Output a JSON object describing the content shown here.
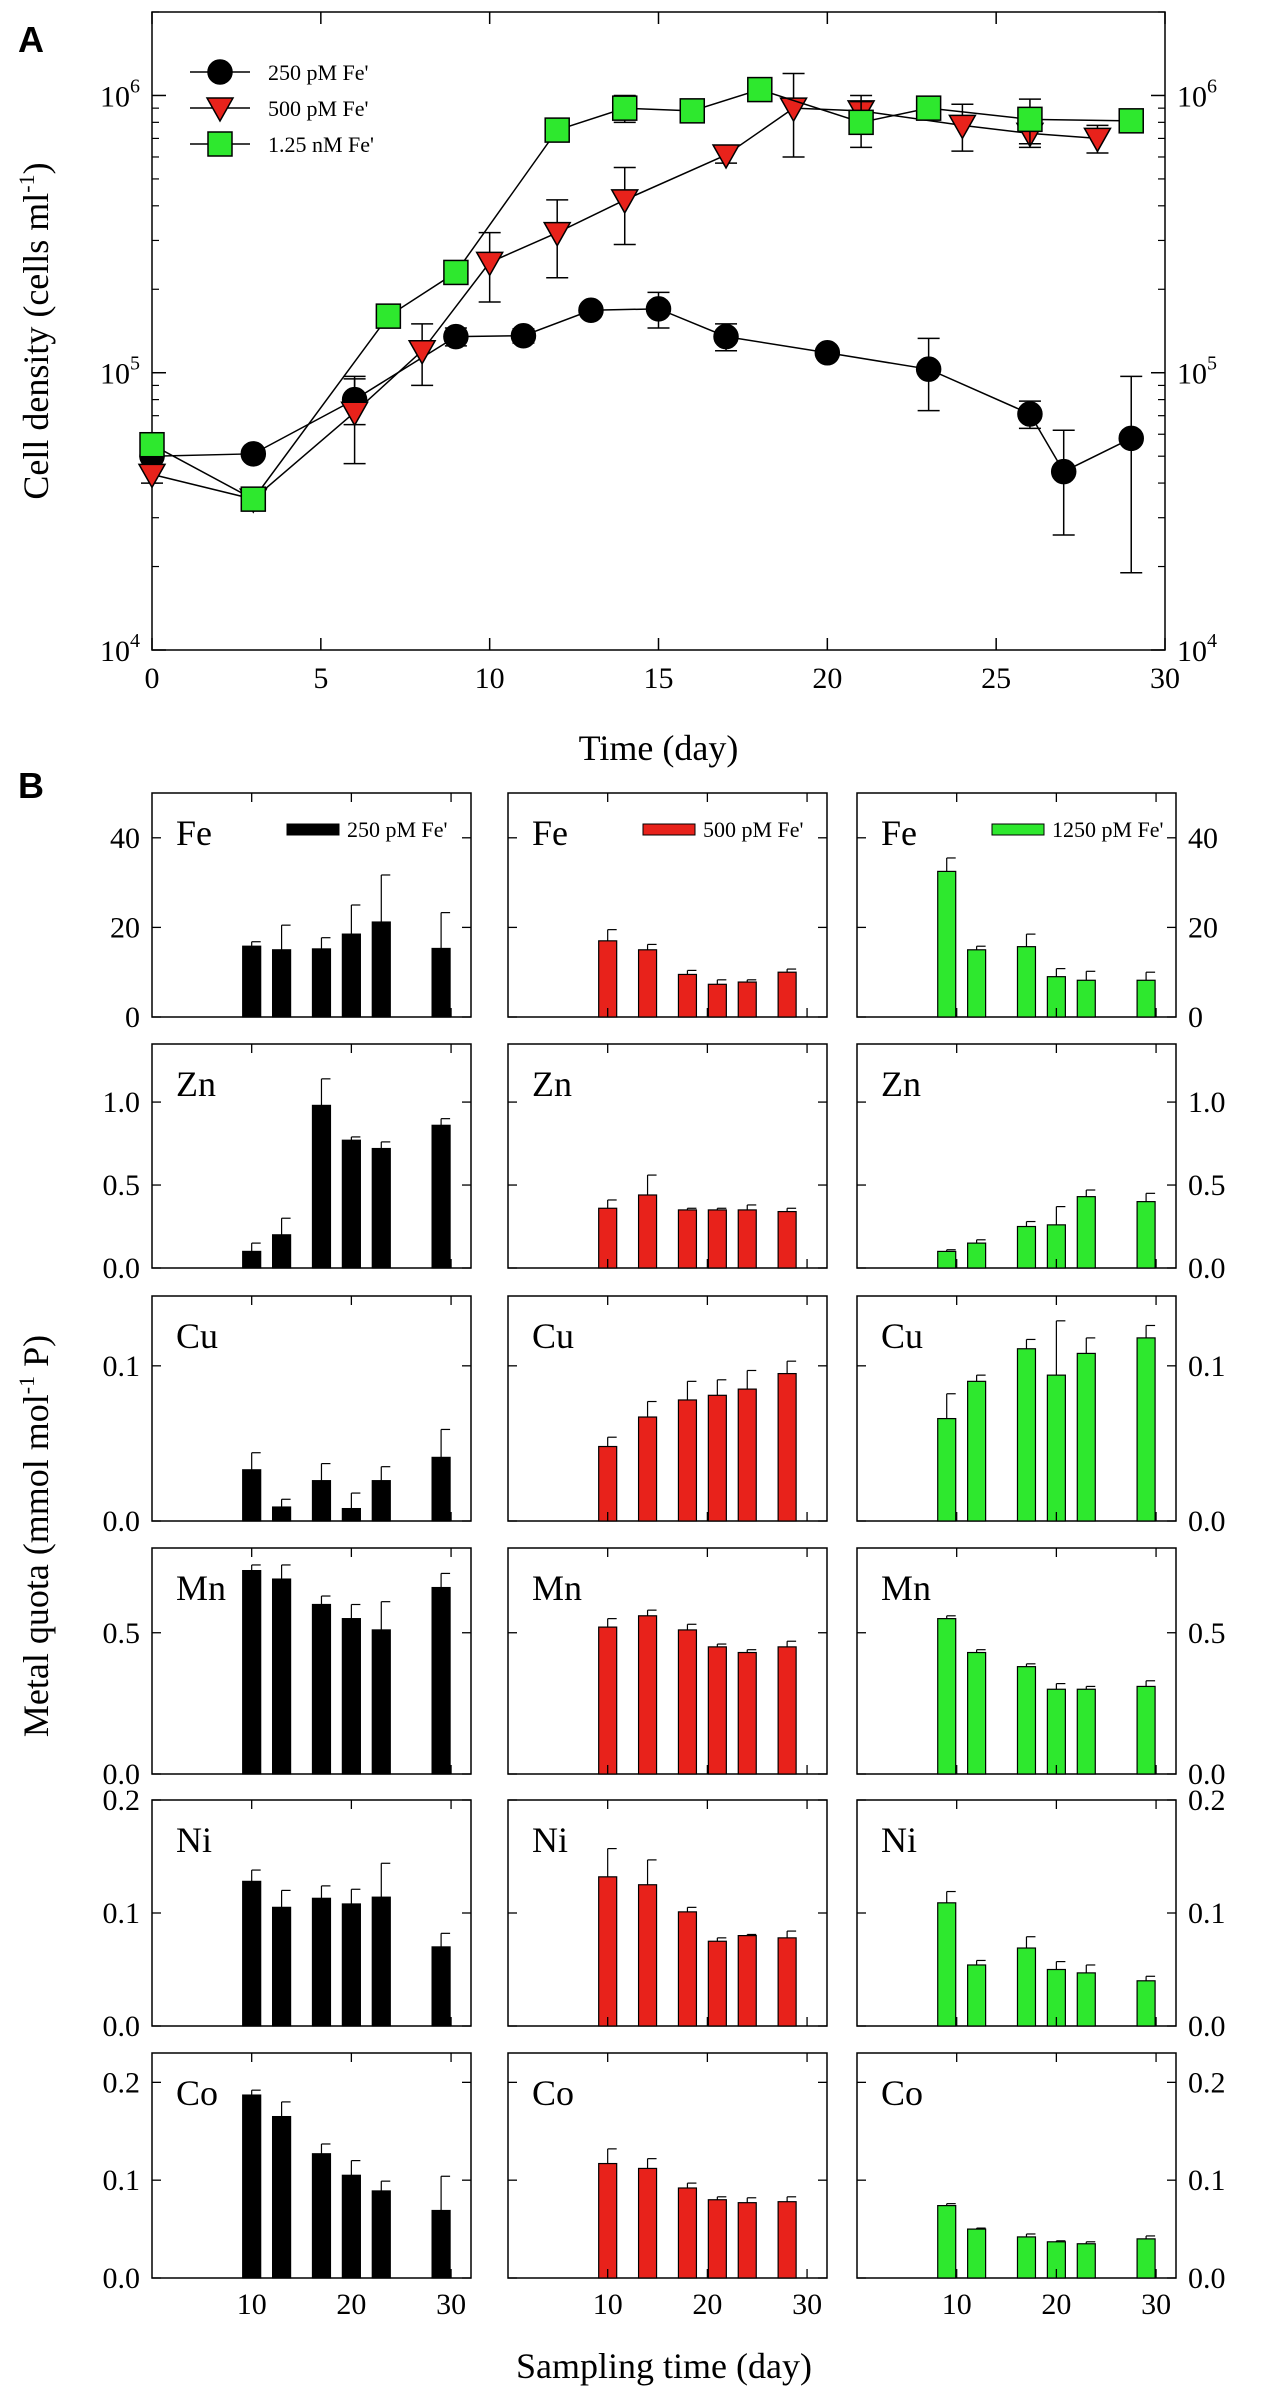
{
  "chart_data": [
    {
      "type": "line",
      "panel": "A",
      "yscale": "log",
      "xlabel": "Time (day)",
      "ylabel": "Cell density (cells ml",
      "ylabel_sup": "-1",
      "ylabel_close": ")",
      "xlim": [
        0,
        30
      ],
      "ylim": [
        10000,
        2000000
      ],
      "xticks": [
        0,
        5,
        10,
        15,
        20,
        25,
        30
      ],
      "yticks": [
        {
          "value": 10000,
          "base": "10",
          "exp": "4"
        },
        {
          "value": 100000,
          "base": "10",
          "exp": "5"
        },
        {
          "value": 1000000,
          "base": "10",
          "exp": "6"
        }
      ],
      "series": [
        {
          "name": "250 pM Fe'",
          "color": "#000000",
          "marker": "circle",
          "x": [
            0,
            3,
            6,
            9,
            11,
            13,
            15,
            17,
            20,
            23,
            26,
            27,
            29
          ],
          "y": [
            50000,
            51000,
            80000,
            135000,
            136000,
            168000,
            170000,
            135000,
            118000,
            103000,
            71000,
            44000,
            58000
          ],
          "err": [
            5000,
            2000,
            15000,
            10000,
            8000,
            5000,
            25000,
            15000,
            5000,
            30000,
            8000,
            18000,
            39000
          ]
        },
        {
          "name": "500 pM Fe'",
          "color": "#e8221b",
          "marker": "triangle",
          "x": [
            0,
            3,
            6,
            8,
            10,
            12,
            14,
            17,
            19,
            21,
            24,
            26,
            28
          ],
          "y": [
            43000,
            35000,
            72000,
            120000,
            250000,
            320000,
            420000,
            610000,
            900000,
            880000,
            780000,
            730000,
            700000
          ],
          "err": [
            3000,
            3000,
            25000,
            30000,
            70000,
            100000,
            130000,
            40000,
            300000,
            120000,
            150000,
            80000,
            80000
          ]
        },
        {
          "name": "1.25 nM Fe'",
          "color": "#2ee82e",
          "marker": "square",
          "x": [
            0,
            3,
            7,
            9,
            12,
            14,
            16,
            18,
            21,
            23,
            26,
            29
          ],
          "y": [
            55000,
            35000,
            160000,
            230000,
            750000,
            900000,
            880000,
            1050000,
            800000,
            900000,
            820000,
            810000
          ],
          "err": [
            5000,
            3000,
            10000,
            15000,
            30000,
            100000,
            30000,
            50000,
            150000,
            30000,
            150000,
            30000
          ]
        }
      ]
    },
    {
      "type": "bar",
      "panel": "B",
      "xlabel": "Sampling time (day)",
      "ylabel": "Metal quota (mmol mol",
      "ylabel_sup": "-1",
      "ylabel_close": " P)",
      "xlim": [
        0,
        32
      ],
      "xticks": [
        10,
        20,
        30
      ],
      "columns": [
        {
          "legend": "250 pM Fe'",
          "color": "#000000",
          "x": [
            10,
            13,
            17,
            20,
            23,
            29
          ]
        },
        {
          "legend": "500 pM Fe'",
          "color": "#e8221b",
          "x": [
            10,
            14,
            18,
            21,
            24,
            28
          ]
        },
        {
          "legend": "1250 pM Fe'",
          "color": "#2ee82e",
          "x": [
            9,
            12,
            17,
            20,
            23,
            29
          ]
        }
      ],
      "rows": [
        {
          "metal": "Fe",
          "ylim": [
            0,
            50
          ],
          "yticks": [
            {
              "v": 0,
              "t": "0"
            },
            {
              "v": 20,
              "t": "20"
            },
            {
              "v": 40,
              "t": "40"
            }
          ],
          "values": [
            [
              15.8,
              15.0,
              15.2,
              18.5,
              21.2,
              15.3
            ],
            [
              17.0,
              15.0,
              9.5,
              7.3,
              7.8,
              10.0
            ],
            [
              32.5,
              15.0,
              15.7,
              9.0,
              8.2,
              8.2
            ]
          ],
          "err": [
            [
              1.0,
              5.5,
              2.5,
              6.5,
              10.5,
              8.0
            ],
            [
              2.5,
              1.2,
              0.9,
              1.0,
              0.5,
              0.7
            ],
            [
              3.0,
              0.8,
              2.8,
              1.8,
              2.0,
              1.8
            ]
          ]
        },
        {
          "metal": "Zn",
          "ylim": [
            0,
            1.35
          ],
          "yticks": [
            {
              "v": 0,
              "t": "0.0"
            },
            {
              "v": 0.5,
              "t": "0.5"
            },
            {
              "v": 1.0,
              "t": "1.0"
            }
          ],
          "values": [
            [
              0.1,
              0.2,
              0.98,
              0.77,
              0.72,
              0.86
            ],
            [
              0.36,
              0.44,
              0.35,
              0.35,
              0.35,
              0.34
            ],
            [
              0.1,
              0.15,
              0.25,
              0.26,
              0.43,
              0.4
            ]
          ],
          "err": [
            [
              0.05,
              0.1,
              0.16,
              0.02,
              0.04,
              0.04
            ],
            [
              0.05,
              0.12,
              0.01,
              0.01,
              0.03,
              0.02
            ],
            [
              0.01,
              0.02,
              0.03,
              0.11,
              0.04,
              0.05
            ]
          ]
        },
        {
          "metal": "Cu",
          "ylim": [
            0,
            0.145
          ],
          "yticks": [
            {
              "v": 0,
              "t": "0.0"
            },
            {
              "v": 0.1,
              "t": "0.1"
            }
          ],
          "values": [
            [
              0.033,
              0.009,
              0.026,
              0.008,
              0.026,
              0.041
            ],
            [
              0.048,
              0.067,
              0.078,
              0.081,
              0.085,
              0.095
            ],
            [
              0.066,
              0.09,
              0.111,
              0.094,
              0.108,
              0.118
            ]
          ],
          "err": [
            [
              0.011,
              0.005,
              0.011,
              0.01,
              0.009,
              0.018
            ],
            [
              0.006,
              0.01,
              0.012,
              0.01,
              0.012,
              0.008
            ],
            [
              0.016,
              0.004,
              0.006,
              0.035,
              0.01,
              0.008
            ]
          ]
        },
        {
          "metal": "Mn",
          "ylim": [
            0,
            0.8
          ],
          "yticks": [
            {
              "v": 0,
              "t": "0.0"
            },
            {
              "v": 0.5,
              "t": "0.5"
            }
          ],
          "values": [
            [
              0.72,
              0.69,
              0.6,
              0.55,
              0.51,
              0.66
            ],
            [
              0.52,
              0.56,
              0.51,
              0.45,
              0.43,
              0.45
            ],
            [
              0.55,
              0.43,
              0.38,
              0.3,
              0.3,
              0.31
            ]
          ],
          "err": [
            [
              0.02,
              0.05,
              0.03,
              0.05,
              0.1,
              0.05
            ],
            [
              0.03,
              0.02,
              0.02,
              0.01,
              0.01,
              0.02
            ],
            [
              0.01,
              0.01,
              0.01,
              0.02,
              0.01,
              0.02
            ]
          ]
        },
        {
          "metal": "Ni",
          "ylim": [
            0,
            0.2
          ],
          "yticks": [
            {
              "v": 0,
              "t": "0.0"
            },
            {
              "v": 0.1,
              "t": "0.1"
            },
            {
              "v": 0.2,
              "t": "0.2"
            }
          ],
          "values": [
            [
              0.128,
              0.105,
              0.113,
              0.108,
              0.114,
              0.07
            ],
            [
              0.132,
              0.125,
              0.101,
              0.075,
              0.08,
              0.078
            ],
            [
              0.109,
              0.054,
              0.069,
              0.05,
              0.047,
              0.04
            ]
          ],
          "err": [
            [
              0.01,
              0.015,
              0.011,
              0.013,
              0.03,
              0.012
            ],
            [
              0.025,
              0.022,
              0.004,
              0.003,
              0.001,
              0.006
            ],
            [
              0.01,
              0.004,
              0.01,
              0.007,
              0.007,
              0.004
            ]
          ]
        },
        {
          "metal": "Co",
          "ylim": [
            0,
            0.23
          ],
          "yticks": [
            {
              "v": 0,
              "t": "0.0"
            },
            {
              "v": 0.1,
              "t": "0.1"
            },
            {
              "v": 0.2,
              "t": "0.2"
            }
          ],
          "values": [
            [
              0.187,
              0.165,
              0.127,
              0.105,
              0.089,
              0.069
            ],
            [
              0.117,
              0.112,
              0.092,
              0.08,
              0.077,
              0.078
            ],
            [
              0.074,
              0.05,
              0.042,
              0.037,
              0.035,
              0.04
            ]
          ],
          "err": [
            [
              0.005,
              0.015,
              0.01,
              0.015,
              0.01,
              0.035
            ],
            [
              0.015,
              0.01,
              0.005,
              0.003,
              0.005,
              0.005
            ],
            [
              0.002,
              0.001,
              0.003,
              0.001,
              0.002,
              0.003
            ]
          ]
        }
      ]
    }
  ]
}
